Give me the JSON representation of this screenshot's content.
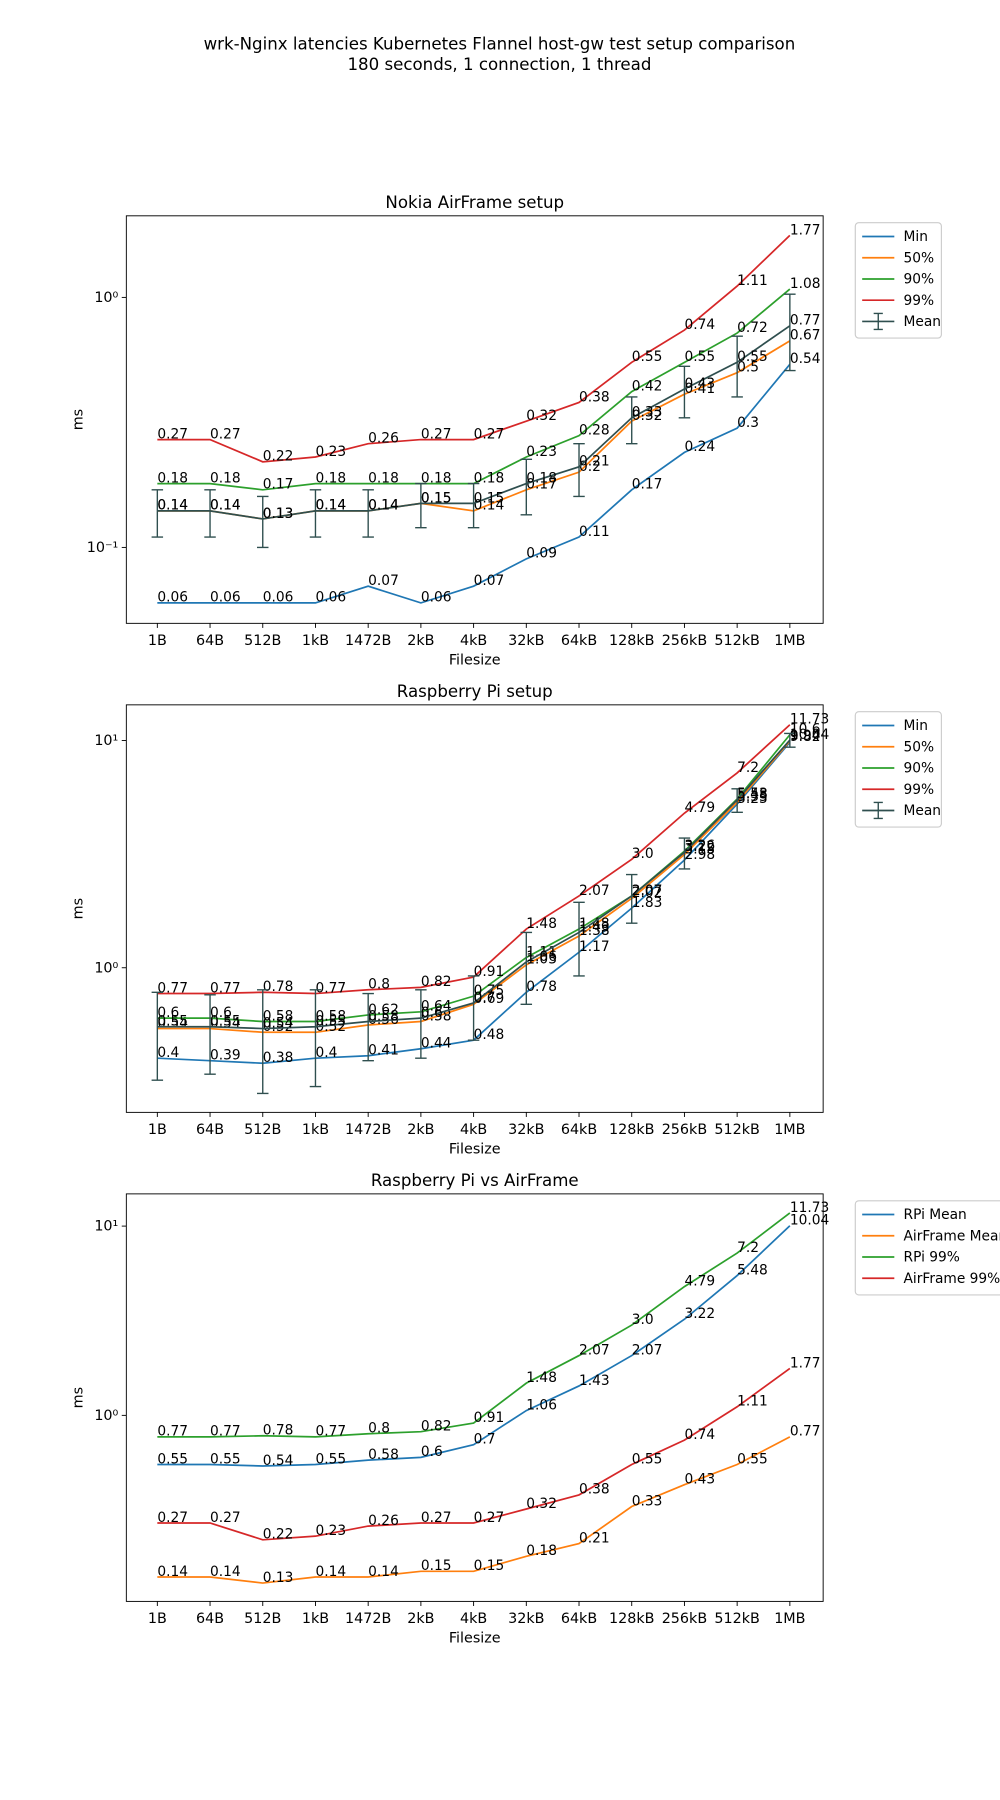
{
  "title": "wrk-Nginx latencies Kubernetes Flannel host-gw test setup comparison",
  "subtitle": "180 seconds, 1 connection, 1 thread",
  "chart_data": [
    {
      "type": "line",
      "title": "Nokia AirFrame setup",
      "xlabel": "Filesize",
      "ylabel": "ms",
      "categories": [
        "1B",
        "64B",
        "512B",
        "1kB",
        "1472B",
        "2kB",
        "4kB",
        "32kB",
        "64kB",
        "128kB",
        "256kB",
        "512kB",
        "1MB"
      ],
      "log_scale": true,
      "ylim": [
        0.0497,
        2.12
      ],
      "yticks": [
        {
          "value": 0.1,
          "label": "10⁻¹"
        },
        {
          "value": 1,
          "label": "10⁰"
        }
      ],
      "legend": "outside-right",
      "series": [
        {
          "name": "Min",
          "color": "#1f77b4",
          "values": [
            0.06,
            0.06,
            0.06,
            0.06,
            0.07,
            0.06,
            0.07,
            0.09,
            0.11,
            0.17,
            0.24,
            0.3,
            0.54
          ]
        },
        {
          "name": "50%",
          "color": "#ff7f0e",
          "values": [
            0.14,
            0.14,
            0.13,
            0.14,
            0.14,
            0.15,
            0.14,
            0.17,
            0.2,
            0.32,
            0.41,
            0.5,
            0.67
          ]
        },
        {
          "name": "90%",
          "color": "#2ca02c",
          "values": [
            0.18,
            0.18,
            0.17,
            0.18,
            0.18,
            0.18,
            0.18,
            0.23,
            0.28,
            0.42,
            0.55,
            0.72,
            1.08
          ]
        },
        {
          "name": "99%",
          "color": "#d62728",
          "values": [
            0.27,
            0.27,
            0.22,
            0.23,
            0.26,
            0.27,
            0.27,
            0.32,
            0.38,
            0.55,
            0.74,
            1.11,
            1.77
          ]
        },
        {
          "name": "Mean",
          "color": "#2f4f4f",
          "values": [
            0.14,
            0.14,
            0.13,
            0.14,
            0.14,
            0.15,
            0.15,
            0.18,
            0.21,
            0.33,
            0.43,
            0.55,
            0.77
          ],
          "errors": [
            0.03,
            0.03,
            0.03,
            0.03,
            0.03,
            0.03,
            0.03,
            0.045,
            0.05,
            0.07,
            0.1,
            0.15,
            0.26
          ]
        }
      ]
    },
    {
      "type": "line",
      "title": "Raspberry Pi setup",
      "xlabel": "Filesize",
      "ylabel": "ms",
      "categories": [
        "1B",
        "64B",
        "512B",
        "1kB",
        "1472B",
        "2kB",
        "4kB",
        "32kB",
        "64kB",
        "128kB",
        "256kB",
        "512kB",
        "1MB"
      ],
      "log_scale": true,
      "ylim": [
        0.231,
        14.35
      ],
      "yticks": [
        {
          "value": 1,
          "label": "10⁰"
        },
        {
          "value": 10,
          "label": "10¹"
        }
      ],
      "legend": "outside-right",
      "series": [
        {
          "name": "Min",
          "color": "#1f77b4",
          "values": [
            0.4,
            0.39,
            0.38,
            0.4,
            0.41,
            0.44,
            0.48,
            0.78,
            1.17,
            1.83,
            2.98,
            5.25,
            9.82
          ]
        },
        {
          "name": "50%",
          "color": "#ff7f0e",
          "values": [
            0.54,
            0.54,
            0.52,
            0.52,
            0.56,
            0.58,
            0.69,
            1.03,
            1.38,
            2.02,
            3.15,
            5.35,
            9.94
          ]
        },
        {
          "name": "90%",
          "color": "#2ca02c",
          "values": [
            0.6,
            0.6,
            0.58,
            0.58,
            0.62,
            0.64,
            0.75,
            1.11,
            1.48,
            2.07,
            3.26,
            5.53,
            10.6
          ]
        },
        {
          "name": "99%",
          "color": "#d62728",
          "values": [
            0.77,
            0.77,
            0.78,
            0.77,
            0.8,
            0.82,
            0.91,
            1.48,
            2.07,
            3.0,
            4.79,
            7.2,
            11.73
          ],
          "value_labels": [
            "0.77",
            "0.77",
            "0.78",
            "0.77",
            "0.8",
            "0.82",
            "0.91",
            "1.48",
            "2.07",
            "3.0",
            "4.79",
            "7.2",
            "11.73"
          ]
        },
        {
          "name": "Mean",
          "color": "#2f4f4f",
          "values": [
            0.55,
            0.55,
            0.54,
            0.55,
            0.58,
            0.6,
            0.7,
            1.06,
            1.43,
            2.07,
            3.22,
            5.48,
            10.04
          ],
          "errors": [
            0.23,
            0.21,
            0.26,
            0.25,
            0.19,
            0.2,
            0.22,
            0.37,
            0.51,
            0.5,
            0.5,
            0.65,
            0.7
          ]
        }
      ]
    },
    {
      "type": "line",
      "title": "Raspberry Pi vs AirFrame",
      "xlabel": "Filesize",
      "ylabel": "ms",
      "categories": [
        "1B",
        "64B",
        "512B",
        "1kB",
        "1472B",
        "2kB",
        "4kB",
        "32kB",
        "64kB",
        "128kB",
        "256kB",
        "512kB",
        "1MB"
      ],
      "log_scale": true,
      "ylim": [
        0.104,
        14.8
      ],
      "yticks": [
        {
          "value": 1,
          "label": "10⁰"
        },
        {
          "value": 10,
          "label": "10¹"
        }
      ],
      "legend": "outside-right",
      "series": [
        {
          "name": "RPi Mean",
          "color": "#1f77b4",
          "values": [
            0.55,
            0.55,
            0.54,
            0.55,
            0.58,
            0.6,
            0.7,
            1.06,
            1.43,
            2.07,
            3.22,
            5.48,
            10.04
          ]
        },
        {
          "name": "AirFrame Mean",
          "color": "#ff7f0e",
          "values": [
            0.14,
            0.14,
            0.13,
            0.14,
            0.14,
            0.15,
            0.15,
            0.18,
            0.21,
            0.33,
            0.43,
            0.55,
            0.77
          ]
        },
        {
          "name": "RPi 99%",
          "color": "#2ca02c",
          "values": [
            0.77,
            0.77,
            0.78,
            0.77,
            0.8,
            0.82,
            0.91,
            1.48,
            2.07,
            3.0,
            4.79,
            7.2,
            11.73
          ],
          "value_labels": [
            "0.77",
            "0.77",
            "0.78",
            "0.77",
            "0.8",
            "0.82",
            "0.91",
            "1.48",
            "2.07",
            "3.0",
            "4.79",
            "7.2",
            "11.73"
          ]
        },
        {
          "name": "AirFrame 99%",
          "color": "#d62728",
          "values": [
            0.27,
            0.27,
            0.22,
            0.23,
            0.26,
            0.27,
            0.27,
            0.32,
            0.38,
            0.55,
            0.74,
            1.11,
            1.77
          ]
        }
      ]
    }
  ]
}
